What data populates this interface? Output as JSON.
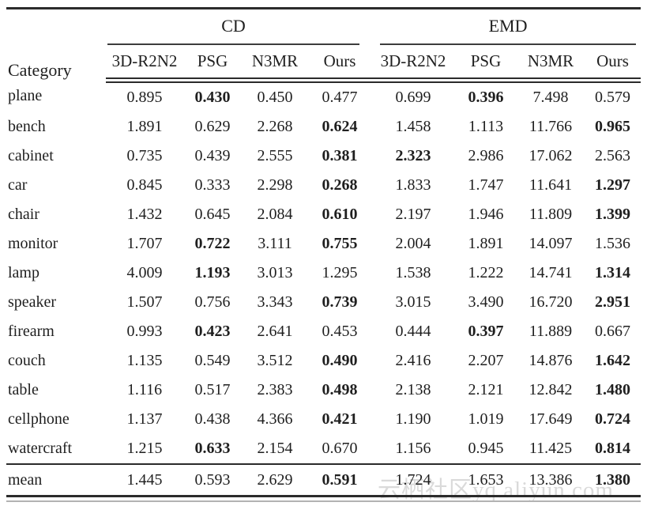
{
  "table": {
    "corner_label": "Category",
    "groups": [
      {
        "label": "CD"
      },
      {
        "label": "EMD"
      }
    ],
    "method_headers": [
      "3D-R2N2",
      "PSG",
      "N3MR",
      "Ours",
      "3D-R2N2",
      "PSG",
      "N3MR",
      "Ours"
    ],
    "rows": [
      {
        "category": "plane",
        "values": [
          "0.895",
          "0.430",
          "0.450",
          "0.477",
          "0.699",
          "0.396",
          "7.498",
          "0.579"
        ],
        "bold": [
          1,
          5
        ]
      },
      {
        "category": "bench",
        "values": [
          "1.891",
          "0.629",
          "2.268",
          "0.624",
          "1.458",
          "1.113",
          "11.766",
          "0.965"
        ],
        "bold": [
          3,
          7
        ]
      },
      {
        "category": "cabinet",
        "values": [
          "0.735",
          "0.439",
          "2.555",
          "0.381",
          "2.323",
          "2.986",
          "17.062",
          "2.563"
        ],
        "bold": [
          3,
          4
        ]
      },
      {
        "category": "car",
        "values": [
          "0.845",
          "0.333",
          "2.298",
          "0.268",
          "1.833",
          "1.747",
          "11.641",
          "1.297"
        ],
        "bold": [
          3,
          7
        ]
      },
      {
        "category": "chair",
        "values": [
          "1.432",
          "0.645",
          "2.084",
          "0.610",
          "2.197",
          "1.946",
          "11.809",
          "1.399"
        ],
        "bold": [
          3,
          7
        ]
      },
      {
        "category": "monitor",
        "values": [
          "1.707",
          "0.722",
          "3.111",
          "0.755",
          "2.004",
          "1.891",
          "14.097",
          "1.536"
        ],
        "bold": [
          1,
          3
        ]
      },
      {
        "category": "lamp",
        "values": [
          "4.009",
          "1.193",
          "3.013",
          "1.295",
          "1.538",
          "1.222",
          "14.741",
          "1.314"
        ],
        "bold": [
          1,
          7
        ]
      },
      {
        "category": "speaker",
        "values": [
          "1.507",
          "0.756",
          "3.343",
          "0.739",
          "3.015",
          "3.490",
          "16.720",
          "2.951"
        ],
        "bold": [
          3,
          7
        ]
      },
      {
        "category": "firearm",
        "values": [
          "0.993",
          "0.423",
          "2.641",
          "0.453",
          "0.444",
          "0.397",
          "11.889",
          "0.667"
        ],
        "bold": [
          1,
          5
        ]
      },
      {
        "category": "couch",
        "values": [
          "1.135",
          "0.549",
          "3.512",
          "0.490",
          "2.416",
          "2.207",
          "14.876",
          "1.642"
        ],
        "bold": [
          3,
          7
        ]
      },
      {
        "category": "table",
        "values": [
          "1.116",
          "0.517",
          "2.383",
          "0.498",
          "2.138",
          "2.121",
          "12.842",
          "1.480"
        ],
        "bold": [
          3,
          7
        ]
      },
      {
        "category": "cellphone",
        "values": [
          "1.137",
          "0.438",
          "4.366",
          "0.421",
          "1.190",
          "1.019",
          "17.649",
          "0.724"
        ],
        "bold": [
          3,
          7
        ]
      },
      {
        "category": "watercraft",
        "values": [
          "1.215",
          "0.633",
          "2.154",
          "0.670",
          "1.156",
          "0.945",
          "11.425",
          "0.814"
        ],
        "bold": [
          1,
          7
        ]
      },
      {
        "category": "mean",
        "values": [
          "1.445",
          "0.593",
          "2.629",
          "0.591",
          "1.724",
          "1.653",
          "13.386",
          "1.380"
        ],
        "bold": [
          3,
          7
        ],
        "is_mean": true
      }
    ]
  },
  "watermark": {
    "text": "云栖社区yq.aliyun.com"
  },
  "colors": {
    "ink": "#1f1f1f",
    "rule_dark": "#2b2b2b",
    "rule_grey": "#b3b3b3",
    "watermark_grey": "#bdbdbd",
    "background": "#ffffff"
  }
}
